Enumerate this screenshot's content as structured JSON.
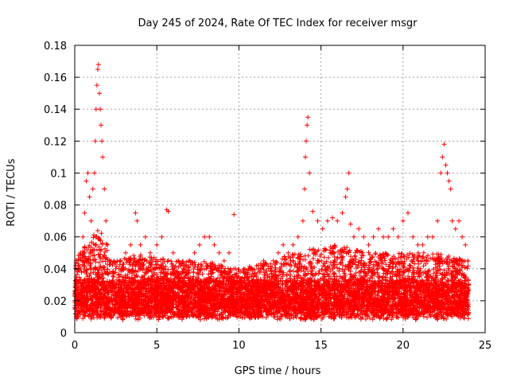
{
  "chart_data": {
    "type": "scatter",
    "title": "Day 245 of 2024, Rate Of TEC Index for receiver msgr",
    "xlabel": "GPS time / hours",
    "ylabel": "ROTI / TECUs",
    "xlim": [
      0,
      25
    ],
    "ylim": [
      0,
      0.18
    ],
    "xticks": [
      0,
      5,
      10,
      15,
      20,
      25
    ],
    "xtick_labels": [
      "0",
      "5",
      "10",
      "15",
      "20",
      "25"
    ],
    "yticks": [
      0,
      0.02,
      0.04,
      0.06,
      0.08,
      0.1,
      0.12,
      0.14,
      0.16,
      0.18
    ],
    "ytick_labels": [
      "0",
      "0.02",
      "0.04",
      "0.06",
      "0.08",
      "0.1",
      "0.12",
      "0.14",
      "0.16",
      "0.18"
    ],
    "grid": true,
    "marker": "+",
    "color": "#ff0000",
    "series": [
      {
        "name": "ROTI",
        "x": [
          0.05,
          0.2,
          0.35,
          0.5,
          0.6,
          0.7,
          0.8,
          0.9,
          1.0,
          1.1,
          1.2,
          1.25,
          1.3,
          1.35,
          1.4,
          1.45,
          1.5,
          1.55,
          1.6,
          1.65,
          1.7,
          1.8,
          1.9,
          2.0,
          2.2,
          2.5,
          2.8,
          3.1,
          3.4,
          3.7,
          3.8,
          4.0,
          4.3,
          4.6,
          5.0,
          5.3,
          5.6,
          5.7,
          6.0,
          6.3,
          6.6,
          7.0,
          7.3,
          7.6,
          7.9,
          8.2,
          8.5,
          8.8,
          9.1,
          9.4,
          9.7,
          9.8,
          10.0,
          10.3,
          10.6,
          10.9,
          11.2,
          11.5,
          11.8,
          12.1,
          12.4,
          12.7,
          13.0,
          13.3,
          13.6,
          13.9,
          14.0,
          14.05,
          14.1,
          14.15,
          14.2,
          14.3,
          14.5,
          14.8,
          15.1,
          15.4,
          15.7,
          16.0,
          16.3,
          16.5,
          16.6,
          16.7,
          16.8,
          17.0,
          17.3,
          17.6,
          17.9,
          18.2,
          18.5,
          18.8,
          19.1,
          19.4,
          19.7,
          20.0,
          20.3,
          20.6,
          20.9,
          21.2,
          21.5,
          21.8,
          22.1,
          22.3,
          22.4,
          22.5,
          22.6,
          22.7,
          22.8,
          22.9,
          23.0,
          23.2,
          23.4,
          23.6,
          23.8,
          23.95
        ],
        "y": [
          0.025,
          0.045,
          0.05,
          0.06,
          0.075,
          0.095,
          0.1,
          0.085,
          0.07,
          0.09,
          0.1,
          0.12,
          0.14,
          0.155,
          0.165,
          0.168,
          0.15,
          0.14,
          0.13,
          0.12,
          0.11,
          0.09,
          0.07,
          0.055,
          0.045,
          0.04,
          0.045,
          0.05,
          0.055,
          0.075,
          0.07,
          0.055,
          0.06,
          0.05,
          0.055,
          0.06,
          0.077,
          0.076,
          0.05,
          0.045,
          0.04,
          0.045,
          0.05,
          0.055,
          0.06,
          0.06,
          0.055,
          0.05,
          0.045,
          0.05,
          0.074,
          0.04,
          0.035,
          0.04,
          0.04,
          0.035,
          0.04,
          0.045,
          0.04,
          0.045,
          0.05,
          0.055,
          0.05,
          0.055,
          0.06,
          0.07,
          0.09,
          0.11,
          0.12,
          0.13,
          0.135,
          0.1,
          0.076,
          0.07,
          0.065,
          0.07,
          0.072,
          0.07,
          0.075,
          0.085,
          0.09,
          0.1,
          0.068,
          0.06,
          0.065,
          0.06,
          0.055,
          0.06,
          0.065,
          0.06,
          0.06,
          0.065,
          0.06,
          0.07,
          0.075,
          0.06,
          0.055,
          0.055,
          0.06,
          0.06,
          0.07,
          0.1,
          0.11,
          0.118,
          0.105,
          0.1,
          0.095,
          0.09,
          0.07,
          0.065,
          0.07,
          0.06,
          0.055,
          0.045
        ]
      }
    ]
  }
}
